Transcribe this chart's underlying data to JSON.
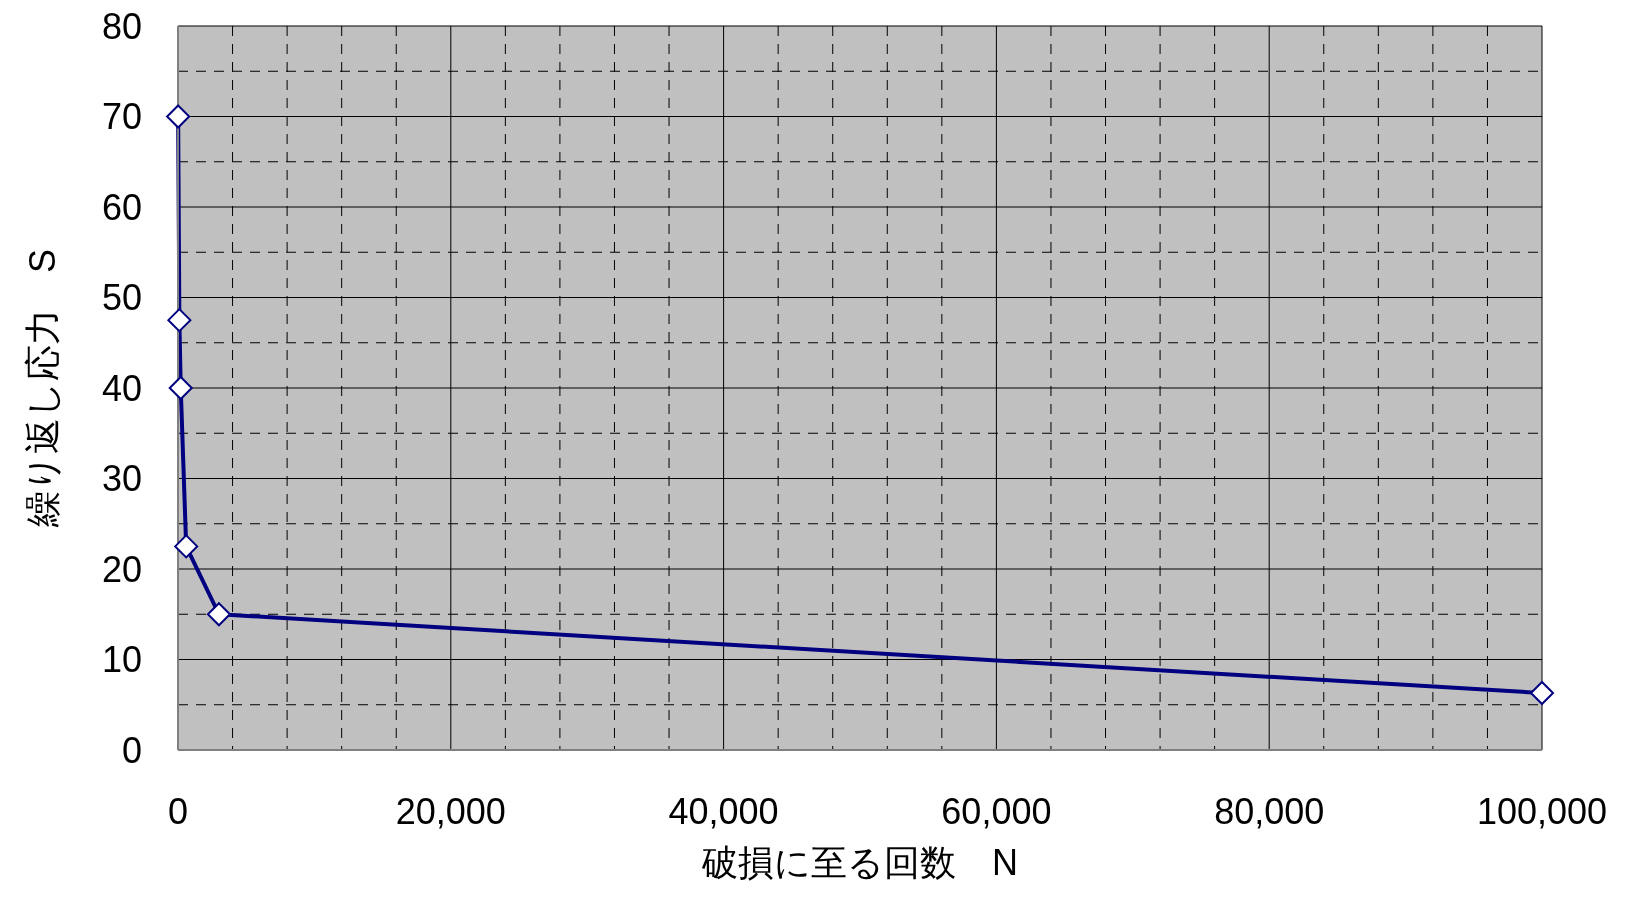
{
  "chart_data": {
    "type": "line",
    "xlabel": "破損に至る回数　N",
    "ylabel": "繰り返し応力　S",
    "x": [
      10,
      100,
      200,
      600,
      3000,
      100000
    ],
    "series": [
      {
        "color": "#000080",
        "values": [
          70,
          47.5,
          40,
          22.5,
          15,
          6.3
        ]
      }
    ],
    "xlim": [
      0,
      100000
    ],
    "xticks": [
      0,
      {
        "value": 20000,
        "label": "20,000"
      },
      {
        "value": 40000,
        "label": "40,000"
      },
      {
        "value": 60000,
        "label": "60,000"
      },
      {
        "value": 80000,
        "label": "80,000"
      },
      {
        "value": 100000,
        "label": "100,000"
      }
    ],
    "ylim": [
      0,
      80
    ],
    "yticks": [
      0,
      10,
      20,
      30,
      40,
      50,
      60,
      70,
      80
    ],
    "grid": true,
    "legend": false,
    "marker": "diamond",
    "line_style": "solid"
  }
}
